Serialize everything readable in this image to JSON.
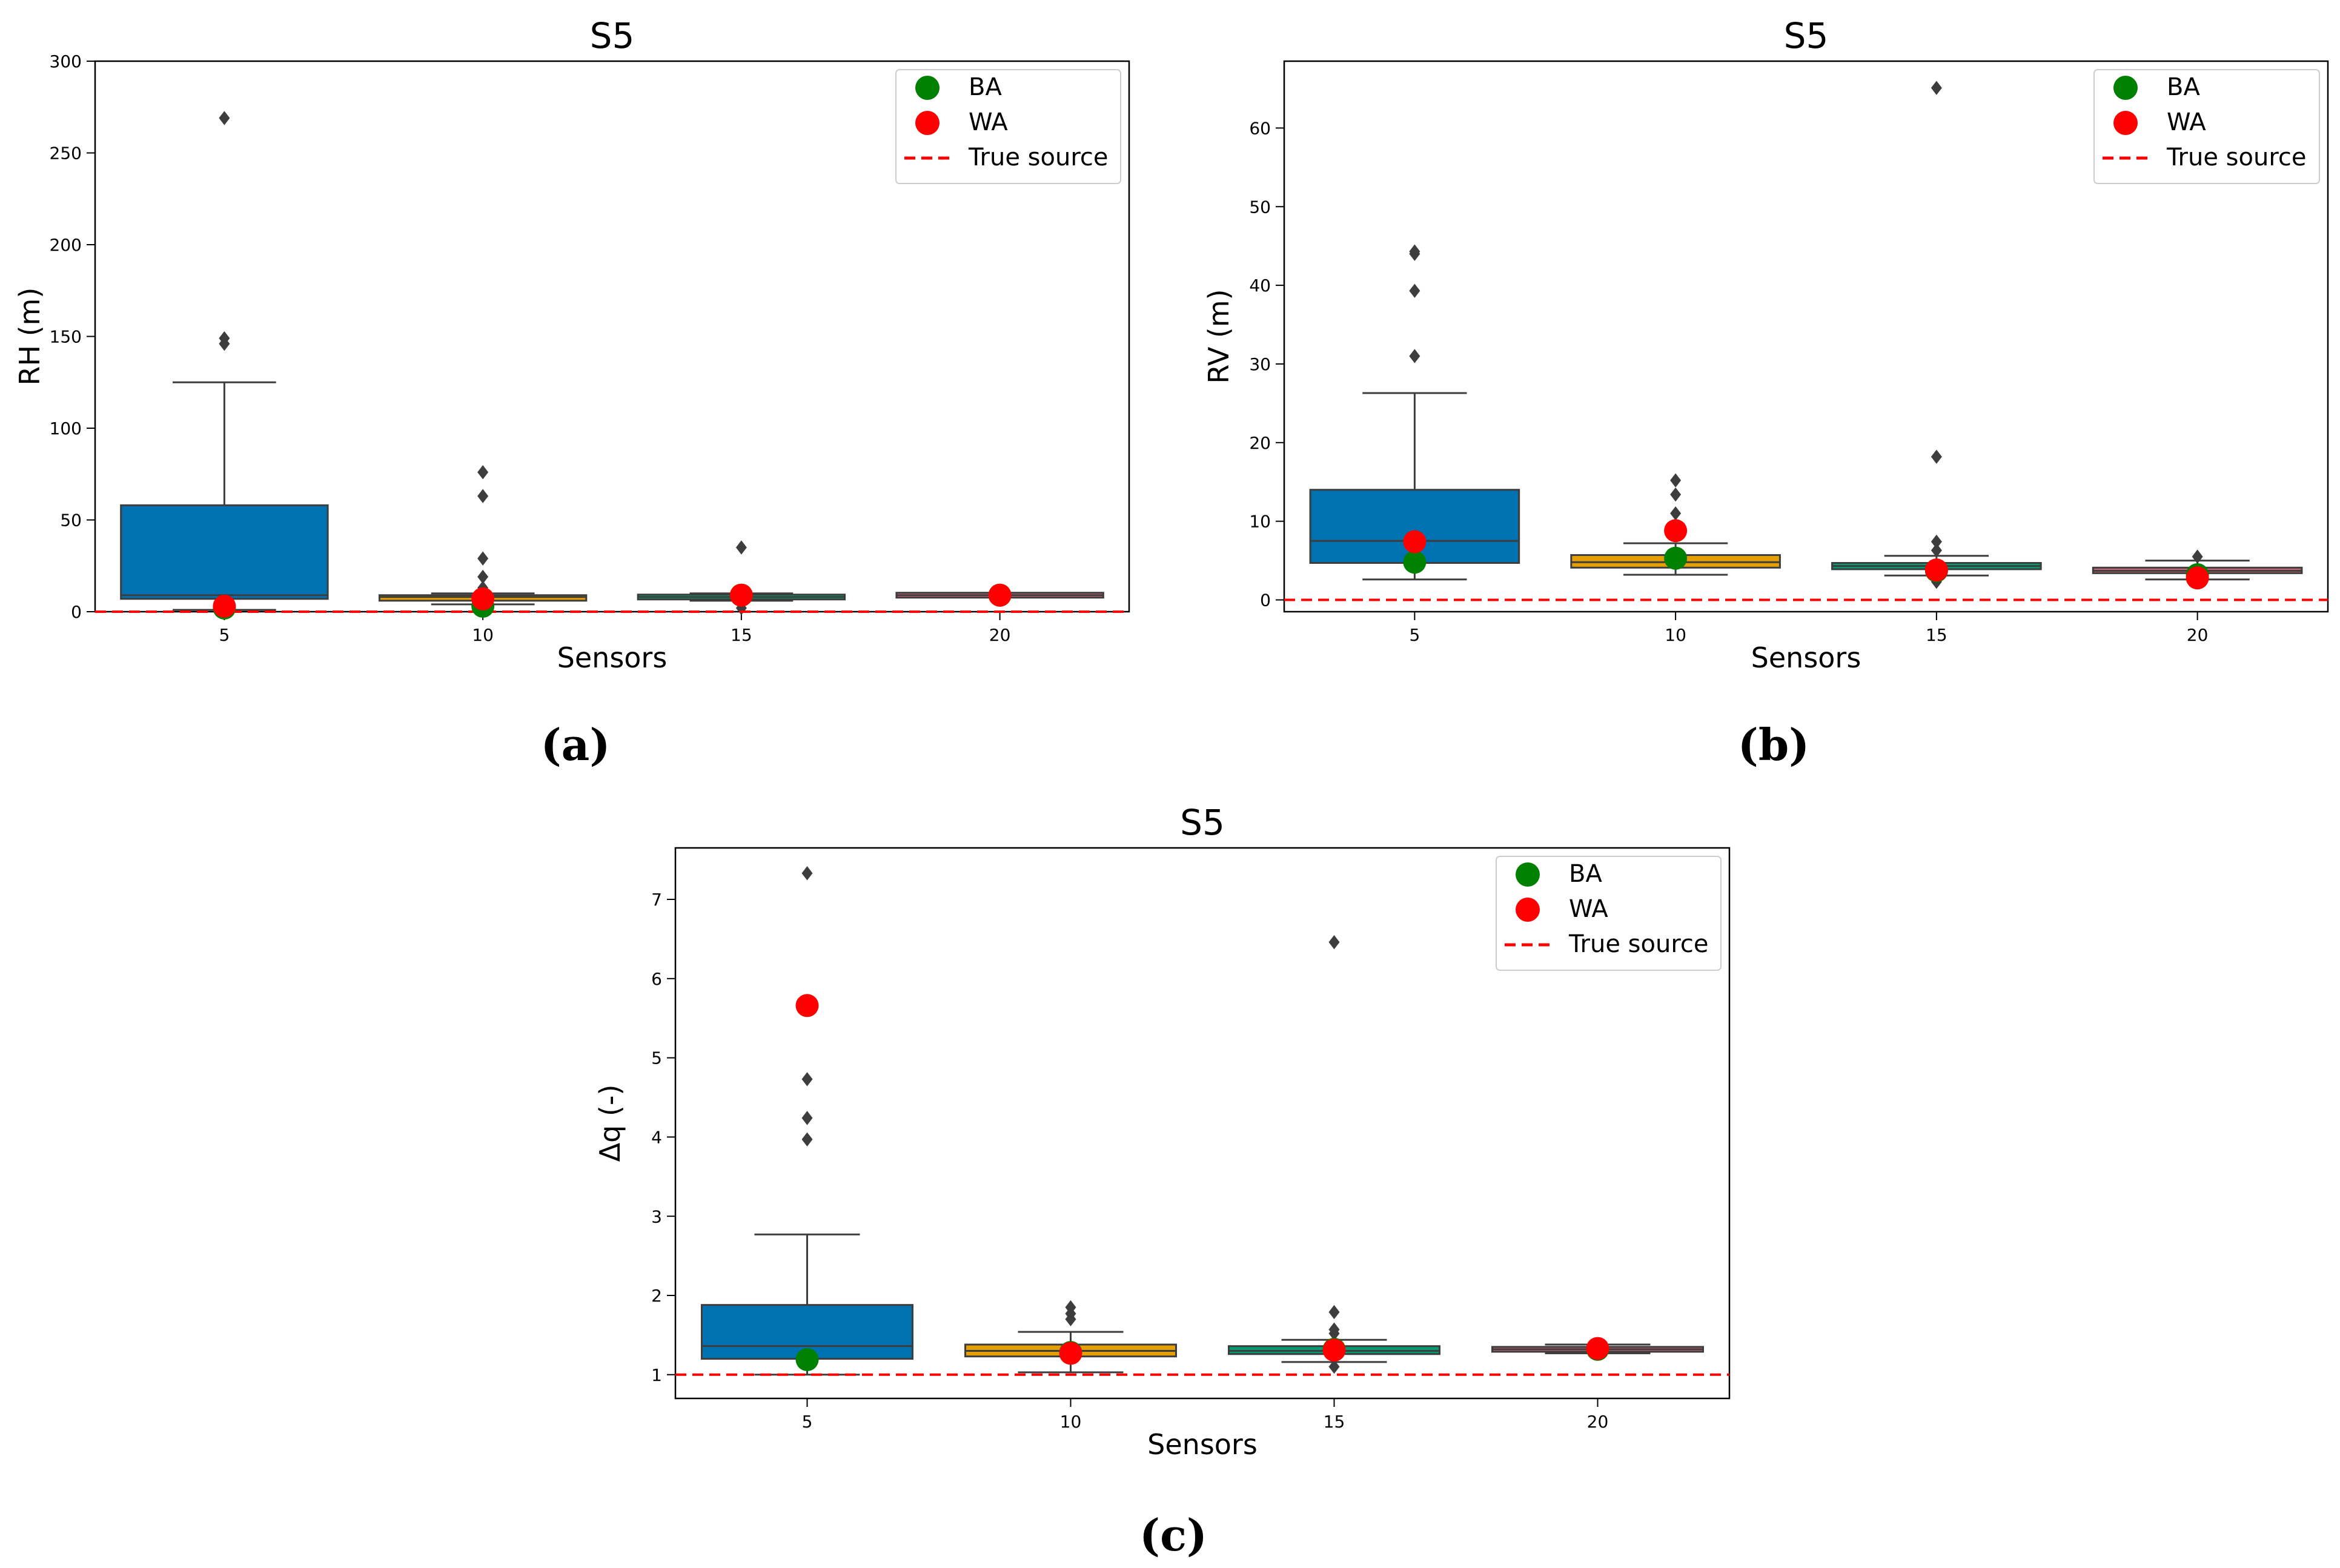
{
  "colors": {
    "box_5": "#0072B2",
    "box_10": "#E69F00",
    "box_15": "#009E73",
    "box_20": "#CC6677",
    "ba": "#008000",
    "wa": "#ff0000",
    "true_source": "#ff0000",
    "whisker": "#3d3d3d",
    "outlier": "#3d3d3d"
  },
  "legend": {
    "ba_label": "BA",
    "wa_label": "WA",
    "true_label": "True source"
  },
  "chart_data": [
    {
      "id": "a",
      "type": "box",
      "title": "S5",
      "caption": "(a)",
      "xlabel": "Sensors",
      "ylabel": "RH (m)",
      "categories": [
        "5",
        "10",
        "15",
        "20"
      ],
      "ylim": [
        0,
        300
      ],
      "yticks": [
        0,
        50,
        100,
        150,
        200,
        250,
        300
      ],
      "true_source": 0,
      "boxes": [
        {
          "q1": 7,
          "median": 9,
          "q3": 58,
          "whislo": 1,
          "whishi": 125,
          "outliers": [
            146,
            149,
            269
          ]
        },
        {
          "q1": 6,
          "median": 8,
          "q3": 9,
          "whislo": 4,
          "whishi": 10,
          "outliers": [
            1,
            13,
            19,
            29,
            63,
            76
          ]
        },
        {
          "q1": 7,
          "median": 8,
          "q3": 9,
          "whislo": 6,
          "whishi": 10,
          "outliers": [
            2,
            35
          ]
        },
        {
          "q1": 8.5,
          "median": 9,
          "q3": 9.5,
          "whislo": 8,
          "whishi": 10,
          "outliers": []
        }
      ],
      "ba": [
        2,
        3,
        9,
        9
      ],
      "wa": [
        3,
        7,
        9,
        9
      ]
    },
    {
      "id": "b",
      "type": "box",
      "title": "S5",
      "caption": "(b)",
      "xlabel": "Sensors",
      "ylabel": "RV (m)",
      "categories": [
        "5",
        "10",
        "15",
        "20"
      ],
      "ylim": [
        -1.5,
        68.5
      ],
      "yticks": [
        0,
        10,
        20,
        30,
        40,
        50,
        60
      ],
      "true_source": 0,
      "boxes": [
        {
          "q1": 4.7,
          "median": 7.5,
          "q3": 14,
          "whislo": 2.6,
          "whishi": 26.3,
          "outliers": [
            31,
            39.3,
            44,
            44.3
          ]
        },
        {
          "q1": 4.1,
          "median": 4.8,
          "q3": 5.7,
          "whislo": 3.2,
          "whishi": 7.2,
          "outliers": [
            9.2,
            11,
            13.4,
            15.2
          ]
        },
        {
          "q1": 3.9,
          "median": 4.3,
          "q3": 4.7,
          "whislo": 3.1,
          "whishi": 5.6,
          "outliers": [
            2.3,
            6.3,
            7.4,
            18.2,
            65.1
          ]
        },
        {
          "q1": 3.4,
          "median": 3.7,
          "q3": 4.1,
          "whislo": 2.6,
          "whishi": 5,
          "outliers": [
            5.5
          ]
        }
      ],
      "ba": [
        4.8,
        5.3,
        3.7,
        3.2
      ],
      "wa": [
        7.4,
        8.8,
        3.8,
        2.8
      ]
    },
    {
      "id": "c",
      "type": "box",
      "title": "S5",
      "caption": "(c)",
      "xlabel": "Sensors",
      "ylabel": "Δq (-)",
      "categories": [
        "5",
        "10",
        "15",
        "20"
      ],
      "ylim": [
        0.7,
        7.65
      ],
      "yticks": [
        1,
        2,
        3,
        4,
        5,
        6,
        7
      ],
      "true_source": 1,
      "boxes": [
        {
          "q1": 1.2,
          "median": 1.36,
          "q3": 1.88,
          "whislo": 1,
          "whishi": 2.77,
          "outliers": [
            3.97,
            4.24,
            4.73,
            7.33
          ]
        },
        {
          "q1": 1.23,
          "median": 1.3,
          "q3": 1.38,
          "whislo": 1.03,
          "whishi": 1.54,
          "outliers": [
            1.7,
            1.77,
            1.85
          ]
        },
        {
          "q1": 1.26,
          "median": 1.3,
          "q3": 1.36,
          "whislo": 1.16,
          "whishi": 1.44,
          "outliers": [
            1.1,
            1.52,
            1.57,
            1.79,
            6.46
          ]
        },
        {
          "q1": 1.3,
          "median": 1.32,
          "q3": 1.34,
          "whislo": 1.27,
          "whishi": 1.38,
          "outliers": []
        }
      ],
      "ba": [
        1.19,
        1.28,
        1.32,
        1.32
      ],
      "wa": [
        5.66,
        1.27,
        1.31,
        1.33
      ]
    }
  ]
}
